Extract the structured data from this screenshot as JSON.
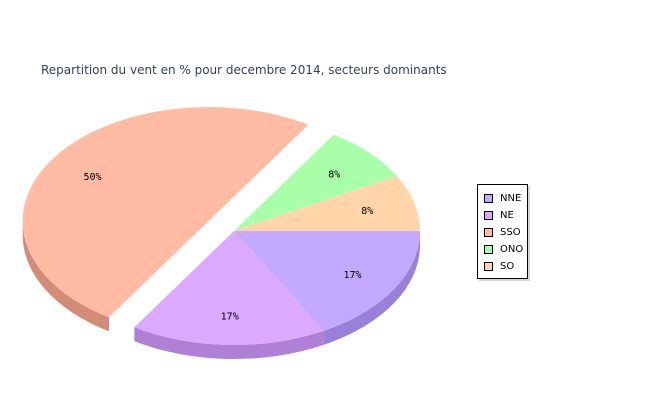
{
  "chart_data": {
    "type": "pie",
    "title": "Repartition du vent en % pour decembre 2014, secteurs dominants",
    "categories": [
      "NNE",
      "NE",
      "SSO",
      "ONO",
      "SO"
    ],
    "values": [
      17,
      17,
      50,
      8,
      8
    ],
    "value_labels": [
      "17%",
      "17%",
      "50%",
      "8%",
      "8%"
    ],
    "colors": [
      "#c3a9ff",
      "#dba9ff",
      "#ffbba3",
      "#a9ffa9",
      "#ffd5a9"
    ],
    "side_colors": [
      "#9a80d6",
      "#b07fd6",
      "#d48c7a",
      "#80d680",
      "#d6ab80"
    ],
    "exploded": [
      "SSO"
    ],
    "rendering": "3d",
    "legend_position": "right"
  }
}
